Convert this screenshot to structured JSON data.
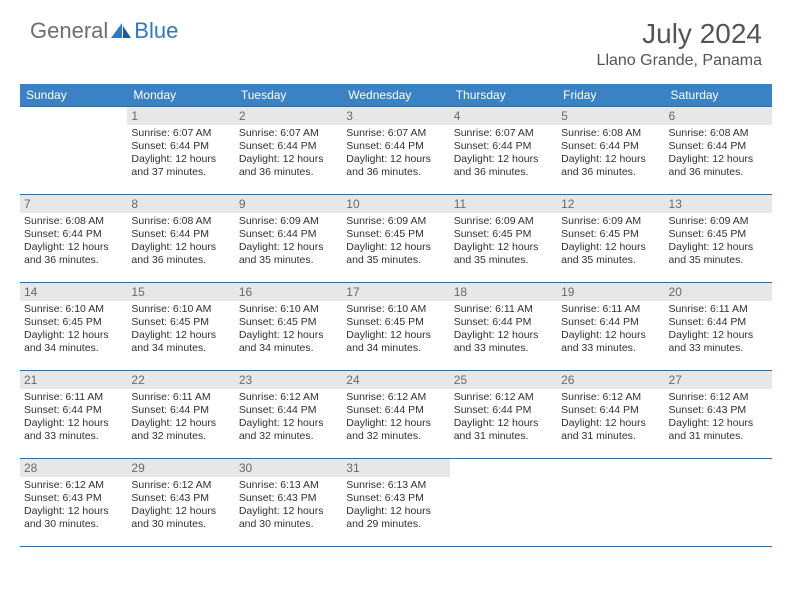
{
  "logo": {
    "part1": "General",
    "part2": "Blue"
  },
  "title": "July 2024",
  "location": "Llano Grande, Panama",
  "colors": {
    "header_bg": "#3b82c4",
    "header_text": "#ffffff",
    "daynum_bg": "#e7e7e7",
    "daynum_text": "#6a6a6a",
    "body_text": "#313131",
    "rule": "#2f6fa8",
    "logo_gray": "#6e6e6e",
    "logo_blue": "#2f79c2"
  },
  "weekdays": [
    "Sunday",
    "Monday",
    "Tuesday",
    "Wednesday",
    "Thursday",
    "Friday",
    "Saturday"
  ],
  "cells": [
    {
      "blank": true
    },
    {
      "day": "1",
      "sunrise": "Sunrise: 6:07 AM",
      "sunset": "Sunset: 6:44 PM",
      "daylight": "Daylight: 12 hours and 37 minutes."
    },
    {
      "day": "2",
      "sunrise": "Sunrise: 6:07 AM",
      "sunset": "Sunset: 6:44 PM",
      "daylight": "Daylight: 12 hours and 36 minutes."
    },
    {
      "day": "3",
      "sunrise": "Sunrise: 6:07 AM",
      "sunset": "Sunset: 6:44 PM",
      "daylight": "Daylight: 12 hours and 36 minutes."
    },
    {
      "day": "4",
      "sunrise": "Sunrise: 6:07 AM",
      "sunset": "Sunset: 6:44 PM",
      "daylight": "Daylight: 12 hours and 36 minutes."
    },
    {
      "day": "5",
      "sunrise": "Sunrise: 6:08 AM",
      "sunset": "Sunset: 6:44 PM",
      "daylight": "Daylight: 12 hours and 36 minutes."
    },
    {
      "day": "6",
      "sunrise": "Sunrise: 6:08 AM",
      "sunset": "Sunset: 6:44 PM",
      "daylight": "Daylight: 12 hours and 36 minutes."
    },
    {
      "day": "7",
      "sunrise": "Sunrise: 6:08 AM",
      "sunset": "Sunset: 6:44 PM",
      "daylight": "Daylight: 12 hours and 36 minutes."
    },
    {
      "day": "8",
      "sunrise": "Sunrise: 6:08 AM",
      "sunset": "Sunset: 6:44 PM",
      "daylight": "Daylight: 12 hours and 36 minutes."
    },
    {
      "day": "9",
      "sunrise": "Sunrise: 6:09 AM",
      "sunset": "Sunset: 6:44 PM",
      "daylight": "Daylight: 12 hours and 35 minutes."
    },
    {
      "day": "10",
      "sunrise": "Sunrise: 6:09 AM",
      "sunset": "Sunset: 6:45 PM",
      "daylight": "Daylight: 12 hours and 35 minutes."
    },
    {
      "day": "11",
      "sunrise": "Sunrise: 6:09 AM",
      "sunset": "Sunset: 6:45 PM",
      "daylight": "Daylight: 12 hours and 35 minutes."
    },
    {
      "day": "12",
      "sunrise": "Sunrise: 6:09 AM",
      "sunset": "Sunset: 6:45 PM",
      "daylight": "Daylight: 12 hours and 35 minutes."
    },
    {
      "day": "13",
      "sunrise": "Sunrise: 6:09 AM",
      "sunset": "Sunset: 6:45 PM",
      "daylight": "Daylight: 12 hours and 35 minutes."
    },
    {
      "day": "14",
      "sunrise": "Sunrise: 6:10 AM",
      "sunset": "Sunset: 6:45 PM",
      "daylight": "Daylight: 12 hours and 34 minutes."
    },
    {
      "day": "15",
      "sunrise": "Sunrise: 6:10 AM",
      "sunset": "Sunset: 6:45 PM",
      "daylight": "Daylight: 12 hours and 34 minutes."
    },
    {
      "day": "16",
      "sunrise": "Sunrise: 6:10 AM",
      "sunset": "Sunset: 6:45 PM",
      "daylight": "Daylight: 12 hours and 34 minutes."
    },
    {
      "day": "17",
      "sunrise": "Sunrise: 6:10 AM",
      "sunset": "Sunset: 6:45 PM",
      "daylight": "Daylight: 12 hours and 34 minutes."
    },
    {
      "day": "18",
      "sunrise": "Sunrise: 6:11 AM",
      "sunset": "Sunset: 6:44 PM",
      "daylight": "Daylight: 12 hours and 33 minutes."
    },
    {
      "day": "19",
      "sunrise": "Sunrise: 6:11 AM",
      "sunset": "Sunset: 6:44 PM",
      "daylight": "Daylight: 12 hours and 33 minutes."
    },
    {
      "day": "20",
      "sunrise": "Sunrise: 6:11 AM",
      "sunset": "Sunset: 6:44 PM",
      "daylight": "Daylight: 12 hours and 33 minutes."
    },
    {
      "day": "21",
      "sunrise": "Sunrise: 6:11 AM",
      "sunset": "Sunset: 6:44 PM",
      "daylight": "Daylight: 12 hours and 33 minutes."
    },
    {
      "day": "22",
      "sunrise": "Sunrise: 6:11 AM",
      "sunset": "Sunset: 6:44 PM",
      "daylight": "Daylight: 12 hours and 32 minutes."
    },
    {
      "day": "23",
      "sunrise": "Sunrise: 6:12 AM",
      "sunset": "Sunset: 6:44 PM",
      "daylight": "Daylight: 12 hours and 32 minutes."
    },
    {
      "day": "24",
      "sunrise": "Sunrise: 6:12 AM",
      "sunset": "Sunset: 6:44 PM",
      "daylight": "Daylight: 12 hours and 32 minutes."
    },
    {
      "day": "25",
      "sunrise": "Sunrise: 6:12 AM",
      "sunset": "Sunset: 6:44 PM",
      "daylight": "Daylight: 12 hours and 31 minutes."
    },
    {
      "day": "26",
      "sunrise": "Sunrise: 6:12 AM",
      "sunset": "Sunset: 6:44 PM",
      "daylight": "Daylight: 12 hours and 31 minutes."
    },
    {
      "day": "27",
      "sunrise": "Sunrise: 6:12 AM",
      "sunset": "Sunset: 6:43 PM",
      "daylight": "Daylight: 12 hours and 31 minutes."
    },
    {
      "day": "28",
      "sunrise": "Sunrise: 6:12 AM",
      "sunset": "Sunset: 6:43 PM",
      "daylight": "Daylight: 12 hours and 30 minutes."
    },
    {
      "day": "29",
      "sunrise": "Sunrise: 6:12 AM",
      "sunset": "Sunset: 6:43 PM",
      "daylight": "Daylight: 12 hours and 30 minutes."
    },
    {
      "day": "30",
      "sunrise": "Sunrise: 6:13 AM",
      "sunset": "Sunset: 6:43 PM",
      "daylight": "Daylight: 12 hours and 30 minutes."
    },
    {
      "day": "31",
      "sunrise": "Sunrise: 6:13 AM",
      "sunset": "Sunset: 6:43 PM",
      "daylight": "Daylight: 12 hours and 29 minutes."
    },
    {
      "blank": true
    },
    {
      "blank": true
    },
    {
      "blank": true
    }
  ]
}
